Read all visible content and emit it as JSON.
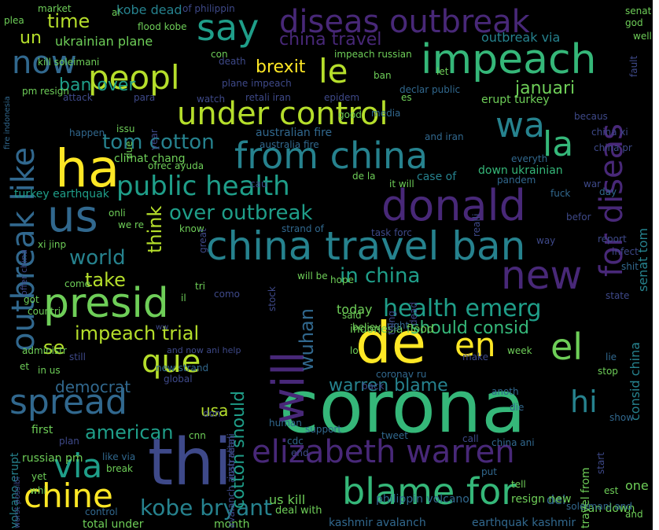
{
  "colors": {
    "background": "#000000",
    "yellow": "#fde725",
    "lime": "#b5de2b",
    "green": "#6ece58",
    "teal": "#35b779",
    "cyan": "#1f9e89",
    "blue": "#26828e",
    "slate": "#31688e",
    "indigo": "#3e4989",
    "violet": "#482878",
    "purple": "#440154"
  },
  "words": [
    {
      "text": "corona",
      "color": "teal"
    },
    {
      "text": "thi",
      "color": "indigo"
    },
    {
      "text": "de",
      "color": "yellow"
    },
    {
      "text": "impeach",
      "color": "teal"
    },
    {
      "text": "donald",
      "color": "violet"
    },
    {
      "text": "ha",
      "color": "yellow"
    },
    {
      "text": "us",
      "color": "slate"
    },
    {
      "text": "presid",
      "color": "green"
    },
    {
      "text": "china travel ban",
      "color": "blue"
    },
    {
      "text": "from china",
      "color": "blue"
    },
    {
      "text": "blame for",
      "color": "teal"
    },
    {
      "text": "elizabeth warren",
      "color": "violet"
    },
    {
      "text": "under control",
      "color": "lime"
    },
    {
      "text": "diseas outbreak",
      "color": "violet"
    },
    {
      "text": "peopl",
      "color": "lime"
    },
    {
      "text": "spread",
      "color": "slate"
    },
    {
      "text": "via",
      "color": "cyan"
    },
    {
      "text": "chine",
      "color": "yellow"
    },
    {
      "text": "que",
      "color": "lime"
    },
    {
      "text": "el",
      "color": "green"
    },
    {
      "text": "en",
      "color": "yellow"
    },
    {
      "text": "new",
      "color": "violet"
    },
    {
      "text": "la",
      "color": "teal"
    },
    {
      "text": "wa",
      "color": "blue"
    },
    {
      "text": "le",
      "color": "lime"
    },
    {
      "text": "say",
      "color": "cyan"
    },
    {
      "text": "now",
      "color": "slate"
    },
    {
      "text": "will",
      "color": "violet"
    },
    {
      "text": "outbreak like",
      "color": "slate"
    },
    {
      "text": "for diseas",
      "color": "violet"
    },
    {
      "text": "public health",
      "color": "cyan"
    },
    {
      "text": "health emerg",
      "color": "cyan"
    },
    {
      "text": "hi",
      "color": "blue"
    },
    {
      "text": "kobe bryant",
      "color": "blue"
    },
    {
      "text": "over outbreak",
      "color": "cyan"
    },
    {
      "text": "tom cotton",
      "color": "blue"
    },
    {
      "text": "in china",
      "color": "cyan"
    },
    {
      "text": "warren blame",
      "color": "blue"
    },
    {
      "text": "impeach trial",
      "color": "lime"
    },
    {
      "text": "should consid",
      "color": "teal"
    },
    {
      "text": "wuhan",
      "color": "slate"
    },
    {
      "text": "american",
      "color": "cyan"
    },
    {
      "text": "world",
      "color": "blue"
    },
    {
      "text": "take",
      "color": "lime"
    },
    {
      "text": "think",
      "color": "lime"
    },
    {
      "text": "cotton should",
      "color": "cyan"
    },
    {
      "text": "consid china",
      "color": "blue"
    },
    {
      "text": "senat tom",
      "color": "blue"
    },
    {
      "text": "time",
      "color": "lime"
    },
    {
      "text": "brexit",
      "color": "yellow"
    },
    {
      "text": "januari",
      "color": "green"
    },
    {
      "text": "ban over",
      "color": "cyan"
    },
    {
      "text": "china travel",
      "color": "violet"
    },
    {
      "text": "ukrainian plane",
      "color": "green"
    },
    {
      "text": "un",
      "color": "lime"
    },
    {
      "text": "kobe dead",
      "color": "blue"
    },
    {
      "text": "outbreak via",
      "color": "blue"
    },
    {
      "text": "usa",
      "color": "lime"
    },
    {
      "text": "democrat",
      "color": "slate"
    },
    {
      "text": "se",
      "color": "lime"
    },
    {
      "text": "one",
      "color": "green"
    },
    {
      "text": "del",
      "color": "slate"
    },
    {
      "text": "us kill",
      "color": "green"
    },
    {
      "text": "today",
      "color": "green"
    },
    {
      "text": "iran down",
      "color": "green"
    },
    {
      "text": "philippin volcano",
      "color": "slate"
    },
    {
      "text": "climat chang",
      "color": "green"
    },
    {
      "text": "australian fire",
      "color": "slate"
    },
    {
      "text": "down ukrainian",
      "color": "teal"
    },
    {
      "text": "indonesia flood",
      "color": "green"
    },
    {
      "text": "travel from",
      "color": "green"
    },
    {
      "text": "kashmir avalanch",
      "color": "slate"
    },
    {
      "text": "resign new",
      "color": "green"
    },
    {
      "text": "case of",
      "color": "blue"
    },
    {
      "text": "earthquak kashmir",
      "color": "slate"
    },
    {
      "text": "total under",
      "color": "green"
    },
    {
      "text": "month",
      "color": "green"
    },
    {
      "text": "deal with",
      "color": "green"
    },
    {
      "text": "volcano erupt",
      "color": "blue"
    },
    {
      "text": "russian pm",
      "color": "green"
    },
    {
      "text": "first",
      "color": "green"
    },
    {
      "text": "xi jinp",
      "color": "green"
    },
    {
      "text": "turkey earthquak",
      "color": "cyan"
    },
    {
      "text": "and iran",
      "color": "slate"
    },
    {
      "text": "erupt turkey",
      "color": "green"
    },
    {
      "text": "declar public",
      "color": "slate"
    },
    {
      "text": "impeach russian",
      "color": "green"
    },
    {
      "text": "kill soleimani",
      "color": "green"
    },
    {
      "text": "flood kobe",
      "color": "green"
    },
    {
      "text": "market",
      "color": "green"
    },
    {
      "text": "fire indonesia",
      "color": "slate"
    },
    {
      "text": "of philippin",
      "color": "indigo"
    },
    {
      "text": "plane impeach",
      "color": "indigo"
    },
    {
      "text": "retali iran",
      "color": "indigo"
    },
    {
      "text": "pm resign",
      "color": "green"
    },
    {
      "text": "cnn",
      "color": "green"
    },
    {
      "text": "iran retali",
      "color": "indigo"
    },
    {
      "text": "cdc",
      "color": "slate"
    },
    {
      "text": "support",
      "color": "slate"
    },
    {
      "text": "end",
      "color": "indigo"
    },
    {
      "text": "tweet",
      "color": "slate"
    },
    {
      "text": "call",
      "color": "indigo"
    },
    {
      "text": "put",
      "color": "slate"
    },
    {
      "text": "tell",
      "color": "green"
    },
    {
      "text": "est",
      "color": "green"
    },
    {
      "text": "start",
      "color": "indigo"
    },
    {
      "text": "show",
      "color": "slate"
    },
    {
      "text": "stop",
      "color": "green"
    },
    {
      "text": "lie",
      "color": "slate"
    },
    {
      "text": "state",
      "color": "indigo"
    },
    {
      "text": "shit",
      "color": "slate"
    },
    {
      "text": "infect",
      "color": "indigo"
    },
    {
      "text": "report",
      "color": "indigo"
    },
    {
      "text": "befor",
      "color": "indigo"
    },
    {
      "text": "day",
      "color": "slate"
    },
    {
      "text": "war",
      "color": "indigo"
    },
    {
      "text": "everyth",
      "color": "slate"
    },
    {
      "text": "pandem",
      "color": "slate"
    },
    {
      "text": "china pr",
      "color": "indigo"
    },
    {
      "text": "china xi",
      "color": "indigo"
    },
    {
      "text": "becaus",
      "color": "indigo"
    },
    {
      "text": "senat",
      "color": "green"
    },
    {
      "text": "god",
      "color": "green"
    },
    {
      "text": "well",
      "color": "green"
    },
    {
      "text": "fault",
      "color": "indigo"
    },
    {
      "text": "let",
      "color": "green"
    },
    {
      "text": "es",
      "color": "green"
    },
    {
      "text": "media",
      "color": "slate"
    },
    {
      "text": "epidem",
      "color": "indigo"
    },
    {
      "text": "good",
      "color": "green"
    },
    {
      "text": "watch",
      "color": "indigo"
    },
    {
      "text": "para",
      "color": "indigo"
    },
    {
      "text": "attack",
      "color": "indigo"
    },
    {
      "text": "issu",
      "color": "green"
    },
    {
      "text": "happen",
      "color": "slate"
    },
    {
      "text": "due",
      "color": "green"
    },
    {
      "text": "ofrec ayuda",
      "color": "green"
    },
    {
      "text": "onli",
      "color": "green"
    },
    {
      "text": "we re",
      "color": "green"
    },
    {
      "text": "know",
      "color": "green"
    },
    {
      "text": "great",
      "color": "indigo"
    },
    {
      "text": "come",
      "color": "green"
    },
    {
      "text": "countri",
      "color": "green"
    },
    {
      "text": "offer china",
      "color": "indigo"
    },
    {
      "text": "got",
      "color": "green"
    },
    {
      "text": "tri",
      "color": "green"
    },
    {
      "text": "il",
      "color": "green"
    },
    {
      "text": "como",
      "color": "indigo"
    },
    {
      "text": "stock",
      "color": "indigo"
    },
    {
      "text": "will be",
      "color": "green"
    },
    {
      "text": "hope",
      "color": "green"
    },
    {
      "text": "said",
      "color": "green"
    },
    {
      "text": "believ",
      "color": "green"
    },
    {
      "text": "right",
      "color": "slate"
    },
    {
      "text": "thing",
      "color": "indigo"
    },
    {
      "text": "dead",
      "color": "indigo"
    },
    {
      "text": "make",
      "color": "indigo"
    },
    {
      "text": "week",
      "color": "green"
    },
    {
      "text": "coronav ru",
      "color": "slate"
    },
    {
      "text": "lo",
      "color": "green"
    },
    {
      "text": "back",
      "color": "indigo"
    },
    {
      "text": "anoth",
      "color": "slate"
    },
    {
      "text": "die",
      "color": "slate"
    },
    {
      "text": "administr",
      "color": "green"
    },
    {
      "text": "in us",
      "color": "green"
    },
    {
      "text": "still",
      "color": "indigo"
    },
    {
      "text": "et",
      "color": "green"
    },
    {
      "text": "new strand",
      "color": "slate"
    },
    {
      "text": "global",
      "color": "indigo"
    },
    {
      "text": "don",
      "color": "indigo"
    },
    {
      "text": "avalanch australian",
      "color": "indigo"
    },
    {
      "text": "human",
      "color": "slate"
    },
    {
      "text": "plan",
      "color": "indigo"
    },
    {
      "text": "like via",
      "color": "slate"
    },
    {
      "text": "break",
      "color": "green"
    },
    {
      "text": "yet",
      "color": "green"
    },
    {
      "text": "whi",
      "color": "green"
    },
    {
      "text": "worst possibl",
      "color": "indigo"
    },
    {
      "text": "control",
      "color": "slate"
    },
    {
      "text": "and now ani help",
      "color": "indigo"
    },
    {
      "text": "ww",
      "color": "indigo"
    },
    {
      "text": "strand of",
      "color": "slate"
    },
    {
      "text": "task forc",
      "color": "indigo"
    },
    {
      "text": "it will",
      "color": "green"
    },
    {
      "text": "de la",
      "color": "green"
    },
    {
      "text": "realli",
      "color": "indigo"
    },
    {
      "text": "fuck",
      "color": "slate"
    },
    {
      "text": "way",
      "color": "indigo"
    },
    {
      "text": "year",
      "color": "indigo"
    },
    {
      "text": "cau",
      "color": "indigo"
    },
    {
      "text": "australia fire",
      "color": "slate"
    },
    {
      "text": "china ani",
      "color": "slate"
    },
    {
      "text": "and",
      "color": "green"
    },
    {
      "text": "soleimani and",
      "color": "slate"
    },
    {
      "text": "al",
      "color": "green"
    },
    {
      "text": "plea",
      "color": "green"
    },
    {
      "text": "con",
      "color": "green"
    },
    {
      "text": "death",
      "color": "indigo"
    },
    {
      "text": "ban",
      "color": "green"
    }
  ]
}
